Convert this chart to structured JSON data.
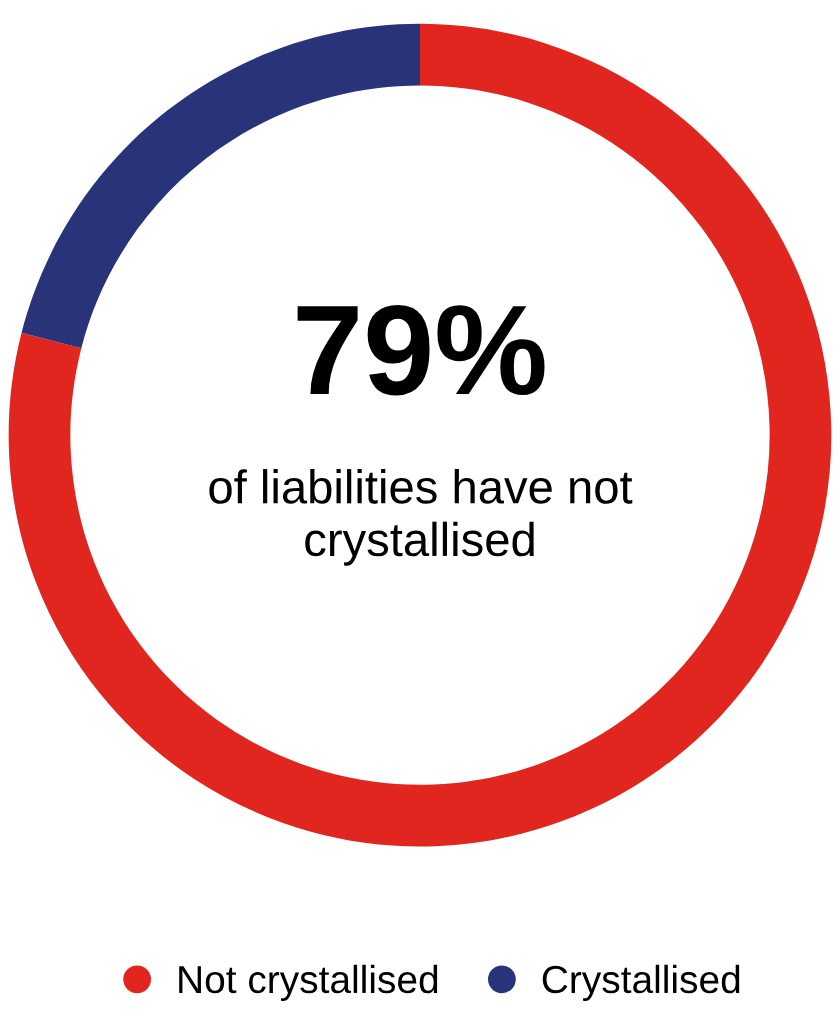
{
  "chart_data": {
    "type": "donut",
    "categories": [
      "Not crystallised",
      "Crystallised"
    ],
    "values": [
      79,
      21
    ],
    "colors": [
      "#e0261f",
      "#28337a"
    ],
    "annotations": [
      "79%",
      "of liabilities have not crystallised"
    ],
    "legend": "bottom"
  }
}
